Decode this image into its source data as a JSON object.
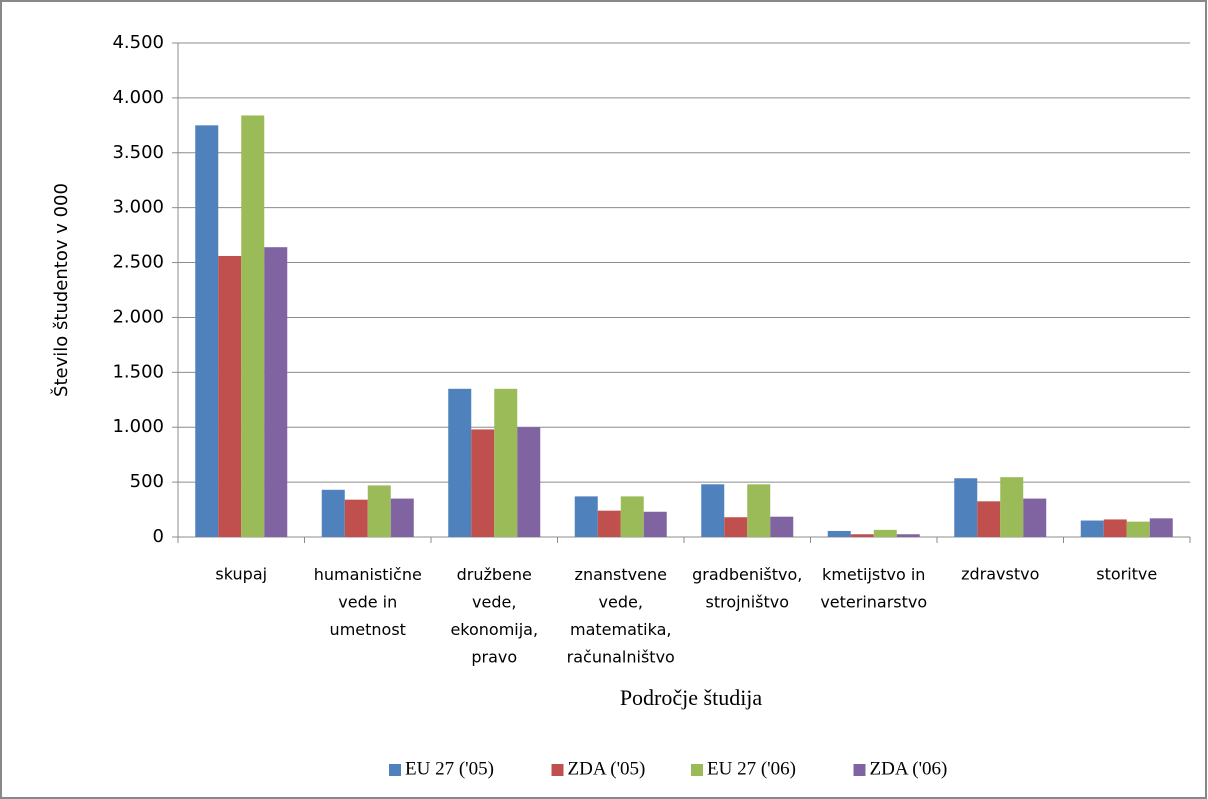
{
  "chart_data": {
    "type": "bar",
    "y_label": "Število študentov v 000",
    "x_label": "Področje študija",
    "categories": [
      "skupaj",
      "humanistične\nvede in\numetnost",
      "družbene\nvede,\nekonomija,\npravo",
      "znanstvene\nvede,\nmatematika,\nračunalništvo",
      "gradbeništvo,\nstrojništvo",
      "kmetijstvo in\nveterinarstvo",
      "zdravstvo",
      "storitve"
    ],
    "series": [
      {
        "name": "EU 27 ('05)",
        "color": "#4f81bd",
        "values": [
          3750,
          430,
          1350,
          370,
          480,
          55,
          535,
          150
        ]
      },
      {
        "name": "ZDA ('05)",
        "color": "#c0504d",
        "values": [
          2560,
          340,
          980,
          240,
          180,
          25,
          325,
          160
        ]
      },
      {
        "name": "EU 27 ('06)",
        "color": "#9bbb59",
        "values": [
          3840,
          470,
          1350,
          370,
          480,
          65,
          545,
          140
        ]
      },
      {
        "name": "ZDA ('06)",
        "color": "#8064a2",
        "values": [
          2640,
          350,
          1000,
          230,
          185,
          25,
          350,
          170
        ]
      }
    ],
    "ylim": [
      0,
      4500
    ],
    "yticks": [
      0,
      500,
      {
        "value": 1000,
        "label": "1.000"
      },
      {
        "value": 1500,
        "label": "1.500"
      },
      {
        "value": 2000,
        "label": "2.000"
      },
      {
        "value": 2500,
        "label": "2.500"
      },
      {
        "value": 3000,
        "label": "3.000"
      },
      {
        "value": 3500,
        "label": "3.500"
      },
      {
        "value": 4000,
        "label": "4.000"
      },
      {
        "value": 4500,
        "label": "4.500"
      }
    ],
    "grid": true,
    "legend": "bottom"
  }
}
